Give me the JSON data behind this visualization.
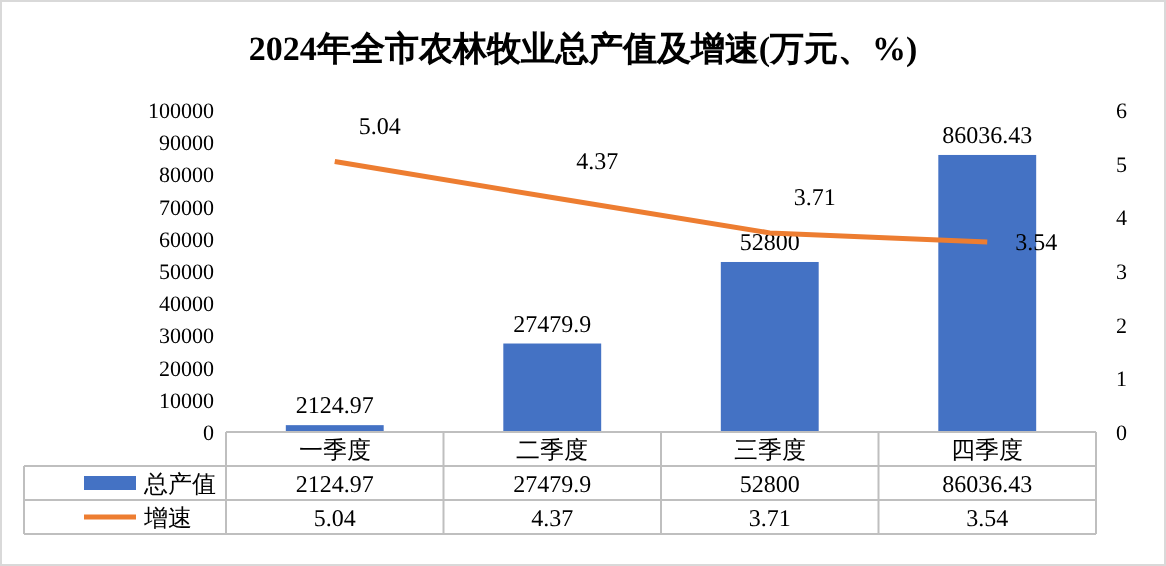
{
  "chart_data": {
    "type": "bar",
    "title": "2024年全市农林牧业总产值及增速(万元、%)",
    "categories": [
      "一季度",
      "二季度",
      "三季度",
      "四季度"
    ],
    "series": [
      {
        "name": "总产值",
        "color": "#4472c4",
        "values": [
          2124.97,
          27479.9,
          52800,
          86036.43
        ],
        "value_labels": [
          "2124.97",
          "27479.9",
          "52800",
          "86036.43"
        ]
      },
      {
        "name": "增速",
        "type": "line",
        "axis": "y2",
        "color": "#ed7d31",
        "values": [
          5.04,
          4.37,
          3.71,
          3.54
        ],
        "value_labels": [
          "5.04",
          "4.37",
          "3.71",
          "3.54"
        ]
      }
    ],
    "ylim": [
      0,
      100000
    ],
    "yticks": [
      0,
      10000,
      20000,
      30000,
      40000,
      50000,
      60000,
      70000,
      80000,
      90000,
      100000
    ],
    "y2lim": [
      0,
      6
    ],
    "y2ticks": [
      0,
      1,
      2,
      3,
      4,
      5,
      6
    ],
    "legend": "bottom",
    "grid": false,
    "marker": "none",
    "line_style": "solid"
  }
}
